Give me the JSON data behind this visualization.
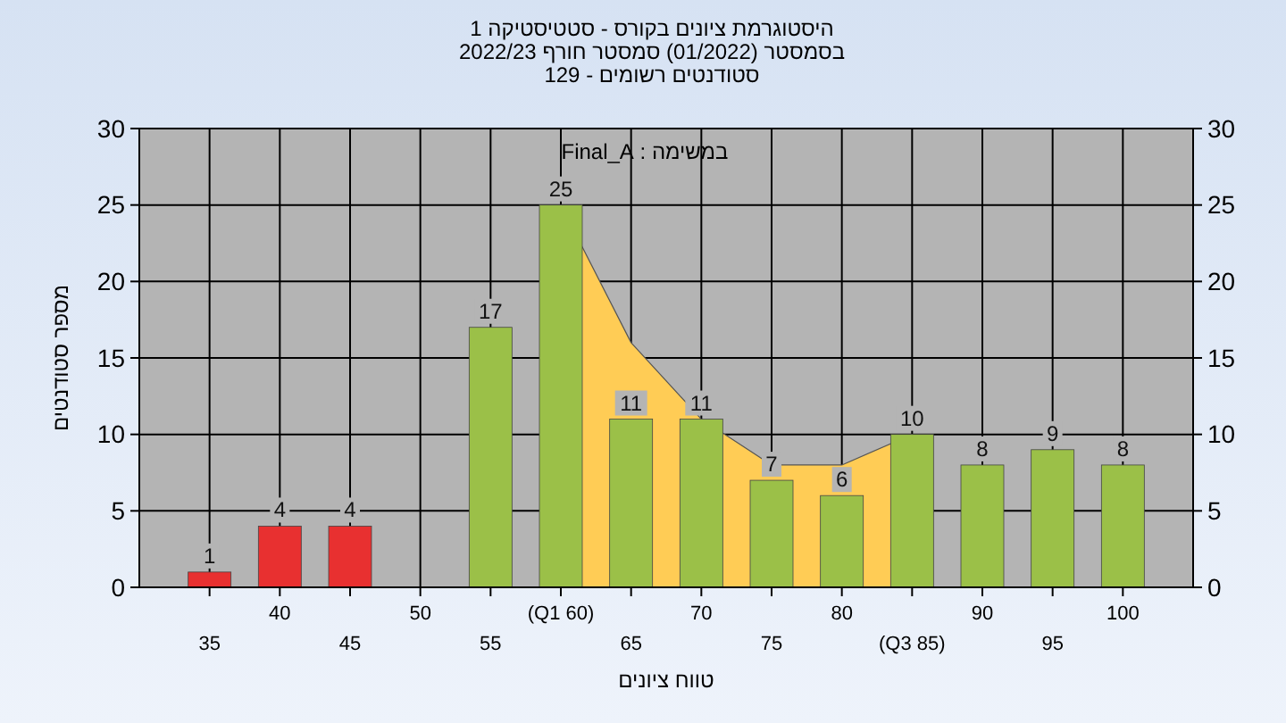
{
  "chart_data": {
    "type": "bar",
    "title": "היסטוגרמת ציונים בקורס - סטטיסטיקה 1",
    "subtitle": "בסמסטר  (01/2022)  סמסטר חורף 2022/23\nסטודנטים רשומים - 129",
    "xlabel": "טווח ציונים",
    "ylabel": "מספר סטודנטים",
    "annotations": [
      "במשימה : Final_A"
    ],
    "categories": [
      "35",
      "40",
      "45",
      "50",
      "55",
      "(Q1 60)",
      "65",
      "70",
      "75",
      "80",
      "(Q3 85)",
      "90",
      "95",
      "100"
    ],
    "series": [
      {
        "type": "area",
        "color": "#ffcc55",
        "values": [
          null,
          null,
          null,
          null,
          null,
          25,
          16,
          11,
          8,
          8,
          10,
          null,
          null,
          null
        ]
      },
      {
        "colors": [
          "#e83030",
          "#e83030",
          "#e83030",
          "#e83030",
          "#9bc048",
          "#9bc048",
          "#9bc048",
          "#9bc048",
          "#9bc048",
          "#9bc048",
          "#9bc048",
          "#9bc048",
          "#9bc048",
          "#9bc048"
        ],
        "values": [
          1,
          4,
          4,
          0,
          17,
          25,
          11,
          11,
          7,
          6,
          10,
          8,
          9,
          8
        ],
        "value_labels": [
          "1",
          "4",
          "4",
          null,
          "17",
          "25",
          "11",
          "11",
          "7",
          "6",
          "10",
          "8",
          "9",
          "8"
        ]
      }
    ],
    "ylim": [
      0,
      30
    ],
    "yticks": [
      0,
      5,
      10,
      15,
      20,
      25,
      30
    ],
    "y2lim": [
      0,
      30
    ],
    "y2ticks": [
      0,
      5,
      10,
      15,
      20,
      25,
      30
    ],
    "grid": true
  }
}
